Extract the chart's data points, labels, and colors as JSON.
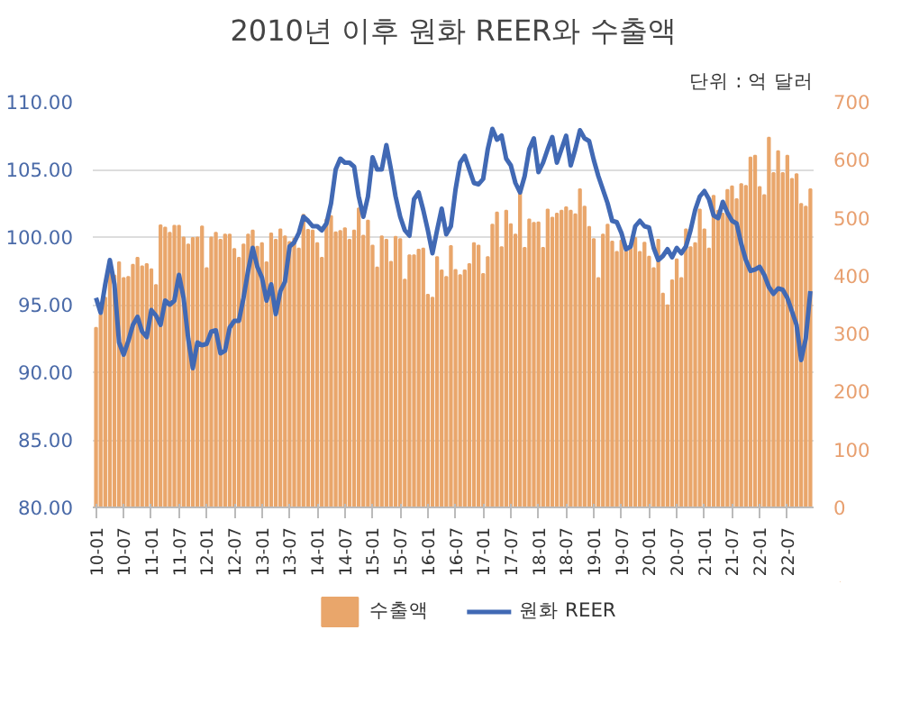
{
  "chart_data": {
    "type": "bar",
    "title": "2010년 이후 원화 REER와 수출액",
    "annotations": [
      "단위 : 억 달러"
    ],
    "categories": [
      "10-01",
      null,
      null,
      null,
      null,
      null,
      "10-07",
      null,
      null,
      null,
      null,
      null,
      "11-01",
      null,
      null,
      null,
      null,
      null,
      "11-07",
      null,
      null,
      null,
      null,
      null,
      "12-01",
      null,
      null,
      null,
      null,
      null,
      "12-07",
      null,
      null,
      null,
      null,
      null,
      "13-01",
      null,
      null,
      null,
      null,
      null,
      "13-07",
      null,
      null,
      null,
      null,
      null,
      "14-01",
      null,
      null,
      null,
      null,
      null,
      "14-07",
      null,
      null,
      null,
      null,
      null,
      "15-01",
      null,
      null,
      null,
      null,
      null,
      "15-07",
      null,
      null,
      null,
      null,
      null,
      "16-01",
      null,
      null,
      null,
      null,
      null,
      "16-07",
      null,
      null,
      null,
      null,
      null,
      "17-01",
      null,
      null,
      null,
      null,
      null,
      "17-07",
      null,
      null,
      null,
      null,
      null,
      "18-01",
      null,
      null,
      null,
      null,
      null,
      "18-07",
      null,
      null,
      null,
      null,
      null,
      "19-01",
      null,
      null,
      null,
      null,
      null,
      "19-07",
      null,
      null,
      null,
      null,
      null,
      "20-01",
      null,
      null,
      null,
      null,
      null,
      "20-07",
      null,
      null,
      null,
      null,
      null,
      "21-01",
      null,
      null,
      null,
      null,
      null,
      "21-07",
      null,
      null,
      null,
      null,
      null,
      "22-01",
      null,
      null,
      null,
      null,
      null,
      "22-07",
      null,
      null,
      null,
      null,
      null
    ],
    "series": [
      {
        "name": "수출액",
        "axis": "y2",
        "color": "#e9a66b",
        "values": [
          310,
          333,
          362,
          407,
          400,
          423,
          396,
          398,
          419,
          431,
          416,
          420,
          411,
          384,
          487,
          483,
          474,
          486,
          486,
          466,
          454,
          465,
          466,
          485,
          413,
          466,
          474,
          462,
          471,
          471,
          446,
          431,
          454,
          471,
          478,
          450,
          456,
          423,
          473,
          462,
          480,
          468,
          458,
          464,
          447,
          505,
          479,
          478,
          456,
          431,
          497,
          503,
          475,
          477,
          482,
          462,
          478,
          516,
          469,
          495,
          452,
          414,
          468,
          462,
          424,
          467,
          463,
          393,
          435,
          435,
          445,
          447,
          367,
          362,
          432,
          409,
          398,
          451,
          410,
          401,
          409,
          420,
          456,
          452,
          403,
          432,
          488,
          509,
          449,
          512,
          489,
          471,
          551,
          448,
          497,
          491,
          492,
          448,
          514,
          500,
          507,
          512,
          518,
          512,
          506,
          549,
          519,
          484,
          463,
          396,
          471,
          488,
          459,
          441,
          461,
          442,
          447,
          465,
          441,
          457,
          433,
          413,
          462,
          369,
          349,
          392,
          428,
          396,
          480,
          449,
          456,
          514,
          480,
          447,
          538,
          512,
          507,
          548,
          554,
          532,
          558,
          555,
          604,
          607,
          553,
          539,
          638,
          577,
          615,
          577,
          607,
          567,
          575,
          524,
          519,
          549
        ]
      },
      {
        "name": "원화 REER",
        "type": "line",
        "color": "#4169b4",
        "values": [
          95.5,
          94.4,
          96.5,
          98.3,
          96.5,
          92.2,
          91.3,
          92.3,
          93.5,
          94.1,
          93.0,
          92.6,
          94.6,
          94.2,
          93.5,
          95.3,
          95.0,
          95.3,
          97.2,
          95.5,
          92.5,
          90.3,
          92.2,
          92.0,
          92.1,
          93.0,
          93.1,
          91.4,
          91.6,
          93.3,
          93.8,
          93.8,
          95.5,
          97.5,
          99.2,
          97.8,
          97.0,
          95.3,
          96.5,
          94.3,
          96.0,
          96.7,
          99.3,
          99.6,
          100.3,
          101.5,
          101.2,
          100.8,
          100.8,
          100.5,
          101.0,
          102.5,
          105.0,
          105.8,
          105.5,
          105.5,
          105.2,
          103.0,
          101.5,
          103.0,
          105.9,
          105.0,
          105.0,
          106.8,
          105.0,
          103.0,
          101.5,
          100.5,
          100.1,
          102.8,
          103.3,
          102.0,
          100.5,
          98.8,
          100.5,
          102.1,
          100.2,
          100.8,
          103.5,
          105.5,
          106.0,
          105.0,
          104.0,
          103.9,
          104.3,
          106.5,
          108.0,
          107.2,
          107.5,
          105.8,
          105.3,
          104.0,
          103.3,
          104.5,
          106.5,
          107.3,
          104.8,
          105.5,
          106.5,
          107.4,
          105.5,
          106.5,
          107.5,
          105.3,
          106.5,
          107.9,
          107.3,
          107.1,
          105.7,
          104.5,
          103.5,
          102.5,
          101.2,
          101.1,
          100.3,
          99.1,
          99.3,
          100.8,
          101.2,
          100.8,
          100.7,
          99.2,
          98.3,
          98.6,
          99.1,
          98.5,
          99.2,
          98.8,
          99.3,
          100.5,
          102.0,
          103.0,
          103.4,
          102.8,
          101.6,
          101.4,
          102.6,
          101.8,
          101.2,
          101.0,
          99.5,
          98.3,
          97.5,
          97.6,
          97.8,
          97.2,
          96.3,
          95.8,
          96.2,
          96.1,
          95.5,
          94.5,
          93.5,
          90.9,
          92.5,
          96.0
        ]
      }
    ],
    "ylim": [
      80,
      110
    ],
    "yticks": [
      {
        "value": 80,
        "label": "80.00"
      },
      {
        "value": 85,
        "label": "85.00"
      },
      {
        "value": 90,
        "label": "90.00"
      },
      {
        "value": 95,
        "label": "95.00"
      },
      {
        "value": 100,
        "label": "100.00"
      },
      {
        "value": 105,
        "label": "105.00"
      },
      {
        "value": 110,
        "label": "110.00"
      }
    ],
    "y2lim": [
      0,
      700
    ],
    "y2ticks": [
      0,
      100,
      200,
      300,
      400,
      500,
      600,
      700
    ],
    "grid": "y",
    "legend": "bottom",
    "line_style": "solid",
    "marker": "none"
  }
}
